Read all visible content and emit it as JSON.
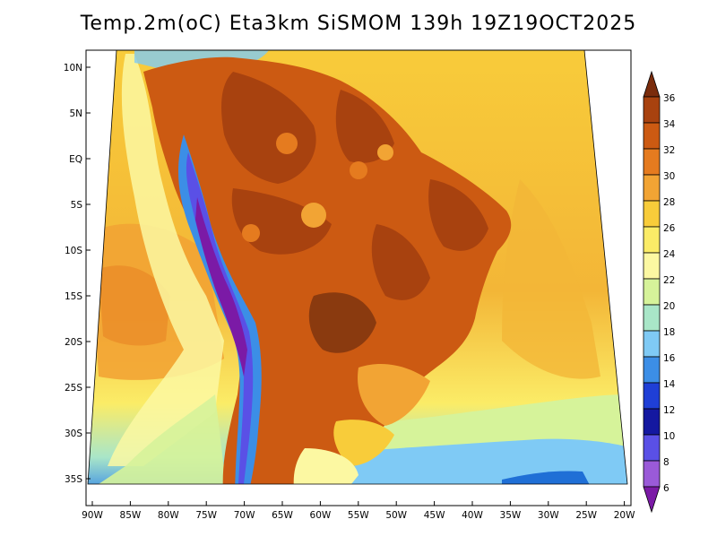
{
  "title": "Temp.2m(oC) Eta3km SiSMOM 139h 19Z19OCT2025",
  "lat_labels": [
    "10N",
    "5N",
    "EQ",
    "5S",
    "10S",
    "15S",
    "20S",
    "25S",
    "30S",
    "35S"
  ],
  "lon_labels": [
    "90W",
    "85W",
    "80W",
    "75W",
    "70W",
    "65W",
    "60W",
    "55W",
    "50W",
    "45W",
    "40W",
    "35W",
    "30W",
    "25W",
    "20W"
  ],
  "colorbar": {
    "labels": [
      "36",
      "34",
      "32",
      "30",
      "28",
      "26",
      "24",
      "22",
      "20",
      "18",
      "16",
      "14",
      "12",
      "10",
      "8",
      "6"
    ],
    "colors": [
      "#7a2c0c",
      "#a8420f",
      "#cc5a12",
      "#e57b1f",
      "#f2a434",
      "#f8cc3a",
      "#fbec67",
      "#fcf8a2",
      "#d6f39a",
      "#a9e6c8",
      "#7fcaf5",
      "#3c8ee6",
      "#1f3fd6",
      "#1418a0",
      "#5a50e6",
      "#9a5ad8",
      "#7b1aa6"
    ]
  }
}
